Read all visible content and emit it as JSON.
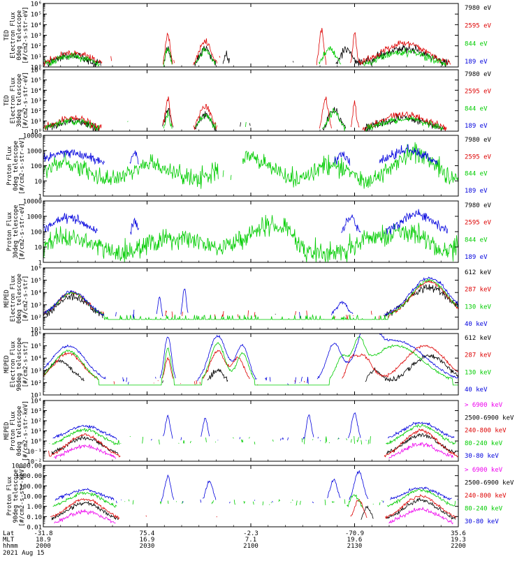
{
  "chart_data": {
    "type": "line",
    "title": "",
    "x_axis": {
      "rows": [
        {
          "label": "Lat",
          "values": [
            "-31.8",
            "75.4",
            "-2.3",
            "-70.9",
            "35.6"
          ]
        },
        {
          "label": "MLT",
          "values": [
            "18.9",
            "16.9",
            "7.1",
            "19.6",
            "19.3"
          ]
        },
        {
          "label": "hhmm",
          "values": [
            "2000",
            "2030",
            "2100",
            "2130",
            "2200"
          ]
        }
      ],
      "date": "2021 Aug 15",
      "range_hhmm": [
        "2000",
        "2200"
      ]
    },
    "panels": [
      {
        "id": "ted-e-0",
        "ylabel": [
          "TED",
          "Electron Flux",
          "0deg telescope",
          "[#/cm2-s-str-eV]"
        ],
        "yscale": "log",
        "ytick_labels": [
          "10⁰",
          "10¹",
          "10²",
          "10³",
          "10⁴",
          "10⁵",
          "10⁶"
        ],
        "ylim_exp": [
          0,
          6
        ],
        "legend": [
          {
            "name": "7980 eV",
            "color": "#000000"
          },
          {
            "name": "2595 eV",
            "color": "#dd0000"
          },
          {
            "name": "844 eV",
            "color": "#00cc00"
          },
          {
            "name": "189 eV",
            "color": "#0000dd"
          }
        ]
      },
      {
        "id": "ted-e-30",
        "ylabel": [
          "TED",
          "Electron Flux",
          "30deg telescope",
          "[#/cm2-s-str-eV]"
        ],
        "yscale": "log",
        "ytick_labels": [
          "10⁰",
          "10¹",
          "10²",
          "10³",
          "10⁴",
          "10⁵",
          "10⁶"
        ],
        "ylim_exp": [
          0,
          6
        ],
        "legend": [
          {
            "name": "7980 eV",
            "color": "#000000"
          },
          {
            "name": "2595 eV",
            "color": "#dd0000"
          },
          {
            "name": "844 eV",
            "color": "#00cc00"
          },
          {
            "name": "189 eV",
            "color": "#0000dd"
          }
        ]
      },
      {
        "id": "ted-p-0",
        "ylabel": [
          "Proton Flux",
          "0deg telescope",
          "[#/cm2-s-str-eV]"
        ],
        "yscale": "log",
        "ytick_labels": [
          "1",
          "10",
          "100",
          "1000",
          "10000"
        ],
        "ylim_exp": [
          0,
          4
        ],
        "legend": [
          {
            "name": "7980 eV",
            "color": "#000000"
          },
          {
            "name": "2595 eV",
            "color": "#dd0000"
          },
          {
            "name": "844 eV",
            "color": "#00cc00"
          },
          {
            "name": "189 eV",
            "color": "#0000dd"
          }
        ]
      },
      {
        "id": "ted-p-30",
        "ylabel": [
          "Proton Flux",
          "30deg telescope",
          "[#/cm2-s-str-eV]"
        ],
        "yscale": "log",
        "ytick_labels": [
          "1",
          "10",
          "100",
          "1000",
          "10000"
        ],
        "ylim_exp": [
          0,
          4
        ],
        "legend": [
          {
            "name": "7980 eV",
            "color": "#000000"
          },
          {
            "name": "2595 eV",
            "color": "#dd0000"
          },
          {
            "name": "844 eV",
            "color": "#00cc00"
          },
          {
            "name": "189 eV",
            "color": "#0000dd"
          }
        ]
      },
      {
        "id": "meped-e-0",
        "ylabel": [
          "MEPED",
          "Electron Flux",
          "0deg telescope",
          "[#/cm2-s-str]"
        ],
        "yscale": "log",
        "ytick_labels": [
          "10¹",
          "10²",
          "10³",
          "10⁴",
          "10⁵",
          "10⁶"
        ],
        "ylim_exp": [
          1,
          6
        ],
        "legend": [
          {
            "name": "612 keV",
            "color": "#000000"
          },
          {
            "name": "287 keV",
            "color": "#dd0000"
          },
          {
            "name": "130 keV",
            "color": "#00cc00"
          },
          {
            "name": "40 keV",
            "color": "#0000dd"
          }
        ]
      },
      {
        "id": "meped-e-90",
        "ylabel": [
          "MEPED",
          "Electron Flux",
          "90deg telescope",
          "[#/cm2-s-str]"
        ],
        "yscale": "log",
        "ytick_labels": [
          "10¹",
          "10²",
          "10³",
          "10⁴",
          "10⁵",
          "10⁶"
        ],
        "ylim_exp": [
          1,
          6
        ],
        "legend": [
          {
            "name": "612 keV",
            "color": "#000000"
          },
          {
            "name": "287 keV",
            "color": "#dd0000"
          },
          {
            "name": "130 keV",
            "color": "#00cc00"
          },
          {
            "name": "40 keV",
            "color": "#0000dd"
          }
        ]
      },
      {
        "id": "meped-p-0",
        "ylabel": [
          "MEPED",
          "Proton Flux",
          "0deg telescope",
          "[#/cm2-s-str-keV]"
        ],
        "yscale": "log",
        "ytick_labels": [
          "10⁻²",
          "10⁻¹",
          "10⁰",
          "10¹",
          "10²",
          "10³",
          "10⁴"
        ],
        "ylim_exp": [
          -2,
          4
        ],
        "legend": [
          {
            "name": "> 6900 keV",
            "color": "#ee00ee"
          },
          {
            "name": "2500-6900 keV",
            "color": "#000000"
          },
          {
            "name": "240-800 keV",
            "color": "#dd0000"
          },
          {
            "name": "80-240 keV",
            "color": "#00cc00"
          },
          {
            "name": "30-80 keV",
            "color": "#0000dd"
          }
        ]
      },
      {
        "id": "meped-p-90",
        "ylabel": [
          "Proton Flux",
          "90deg telescope",
          "[#/cm2-s-str-keV]"
        ],
        "yscale": "log",
        "ytick_labels": [
          "0.01",
          "0.10",
          "1.00",
          "10.00",
          "100.00",
          "1000.00",
          "10000.00"
        ],
        "ylim_exp": [
          -2,
          4
        ],
        "legend": [
          {
            "name": "> 6900 keV",
            "color": "#ee00ee"
          },
          {
            "name": "2500-6900 keV",
            "color": "#000000"
          },
          {
            "name": "240-800 keV",
            "color": "#dd0000"
          },
          {
            "name": "80-240 keV",
            "color": "#00cc00"
          },
          {
            "name": "30-80 keV",
            "color": "#0000dd"
          }
        ]
      }
    ]
  }
}
